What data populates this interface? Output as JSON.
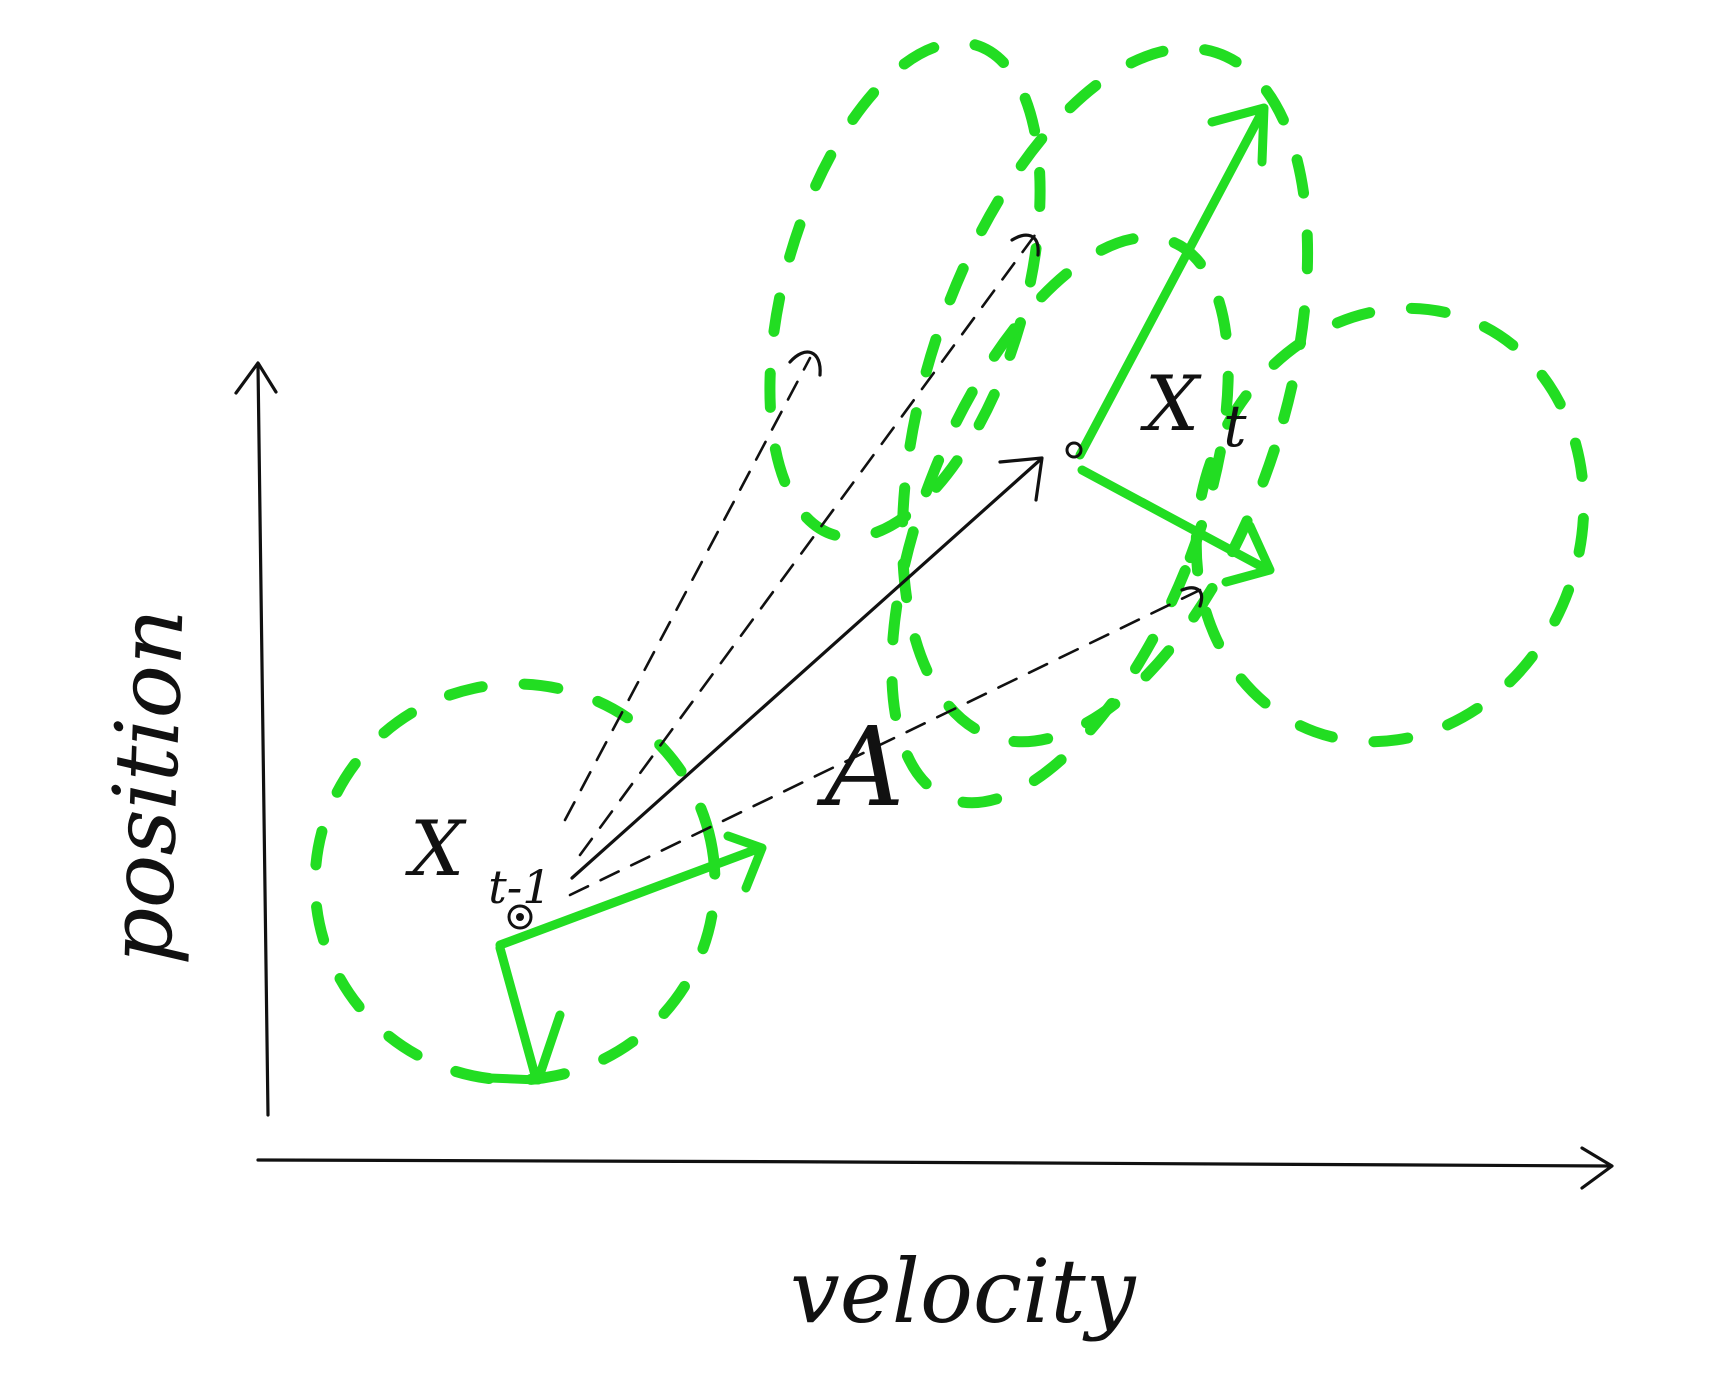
{
  "labels": {
    "y_axis": "position",
    "x_axis": "velocity",
    "state_prev": "X",
    "state_prev_sub": "t-1",
    "state_next": "X",
    "state_next_sub": "t",
    "transition": "A"
  },
  "colors": {
    "ink": "#111111",
    "covariance": "#22dd22",
    "background": "#ffffff"
  }
}
